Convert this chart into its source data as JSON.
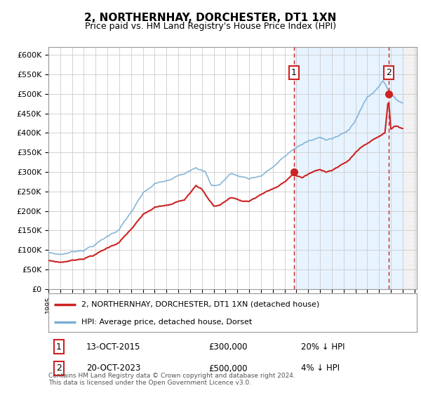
{
  "title": "2, NORTHERNHAY, DORCHESTER, DT1 1XN",
  "subtitle": "Price paid vs. HM Land Registry's House Price Index (HPI)",
  "ylabel_ticks": [
    "£0",
    "£50K",
    "£100K",
    "£150K",
    "£200K",
    "£250K",
    "£300K",
    "£350K",
    "£400K",
    "£450K",
    "£500K",
    "£550K",
    "£600K"
  ],
  "ylim": [
    0,
    620000
  ],
  "xlim_start": 1995.0,
  "xlim_end": 2026.2,
  "hpi_color": "#7bafd4",
  "price_color": "#cc2222",
  "sale1_x": 2015.79,
  "sale1_y": 300000,
  "sale2_x": 2023.8,
  "sale2_y": 500000,
  "sale1_label": "1",
  "sale2_label": "2",
  "legend_line1": "2, NORTHERNHAY, DORCHESTER, DT1 1XN (detached house)",
  "legend_line2": "HPI: Average price, detached house, Dorset",
  "footnote1": "Contains HM Land Registry data © Crown copyright and database right 2024.",
  "footnote2": "This data is licensed under the Open Government Licence v3.0.",
  "table_row1_num": "1",
  "table_row1_date": "13-OCT-2015",
  "table_row1_price": "£300,000",
  "table_row1_hpi": "20% ↓ HPI",
  "table_row2_num": "2",
  "table_row2_date": "20-OCT-2023",
  "table_row2_price": "£500,000",
  "table_row2_hpi": "4% ↓ HPI",
  "background_color": "#ffffff",
  "plot_bg_color": "#ffffff",
  "grid_color": "#cccccc",
  "shade_color": "#ddeeff",
  "hatch_color": "#bbbbbb"
}
